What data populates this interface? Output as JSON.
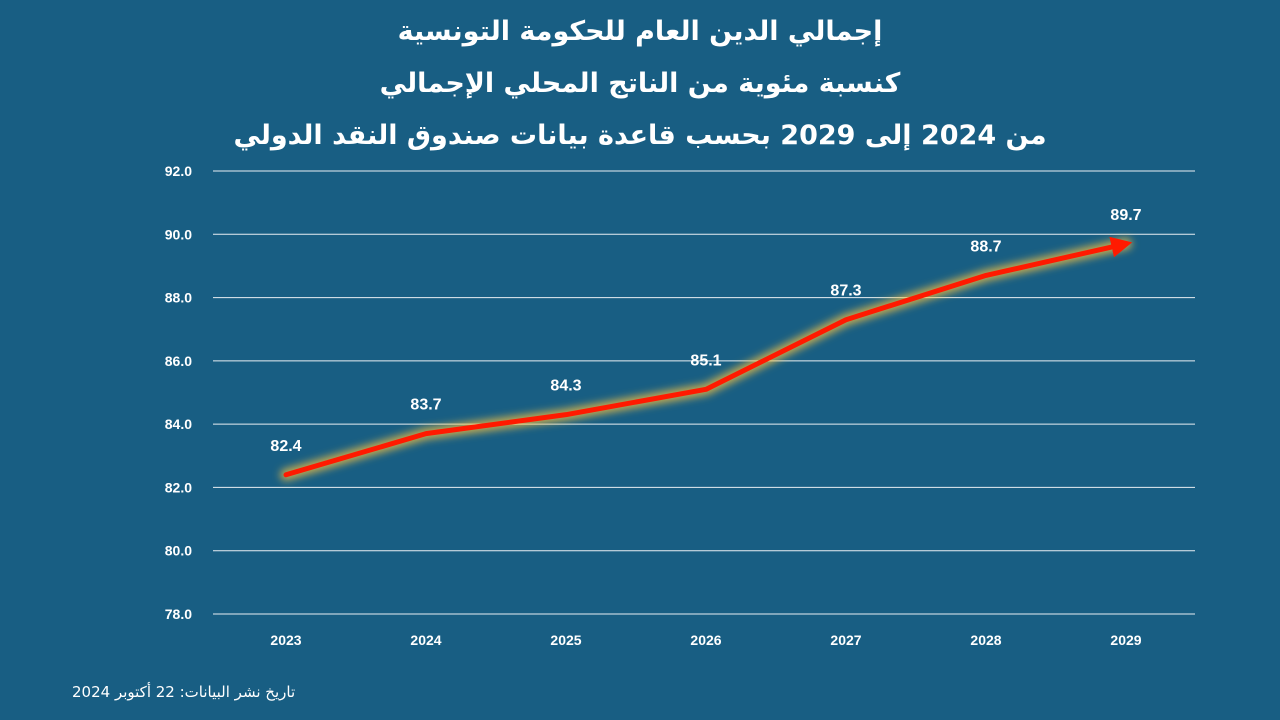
{
  "page": {
    "background_color": "#185e83",
    "title_lines": [
      "إجمالي الدين العام للحكومة التونسية",
      "كنسبة مئوية من الناتج المحلي الإجمالي",
      "من 2024 إلى 2029 بحسب قاعدة بيانات صندوق النقد الدولي"
    ],
    "footnote": "تاريخ نشر البيانات: 22 أكتوبر 2024"
  },
  "chart_data": {
    "type": "line",
    "title": "إجمالي الدين العام للحكومة التونسية كنسبة مئوية من الناتج المحلي الإجمالي من 2024 إلى 2029 بحسب قاعدة بيانات صندوق النقد الدولي",
    "categories": [
      "2023",
      "2024",
      "2025",
      "2026",
      "2027",
      "2028",
      "2029"
    ],
    "series": [
      {
        "values": [
          82.4,
          83.7,
          84.3,
          85.1,
          87.3,
          88.7,
          89.7
        ],
        "data_labels": [
          "82.4",
          "83.7",
          "84.3",
          "85.1",
          "87.3",
          "88.7",
          "89.7"
        ],
        "color": "#ff1a00",
        "glow_color": "#f5c242",
        "end_marker": "arrow"
      }
    ],
    "y_ticks": [
      "78.0",
      "80.0",
      "82.0",
      "84.0",
      "86.0",
      "88.0",
      "90.0",
      "92.0"
    ],
    "ylim": [
      78,
      92
    ],
    "xlabel": "",
    "ylabel": "",
    "grid": "horizontal",
    "legend": "none",
    "colors": {
      "gridline": "#ffffff",
      "text": "#ffffff"
    }
  }
}
